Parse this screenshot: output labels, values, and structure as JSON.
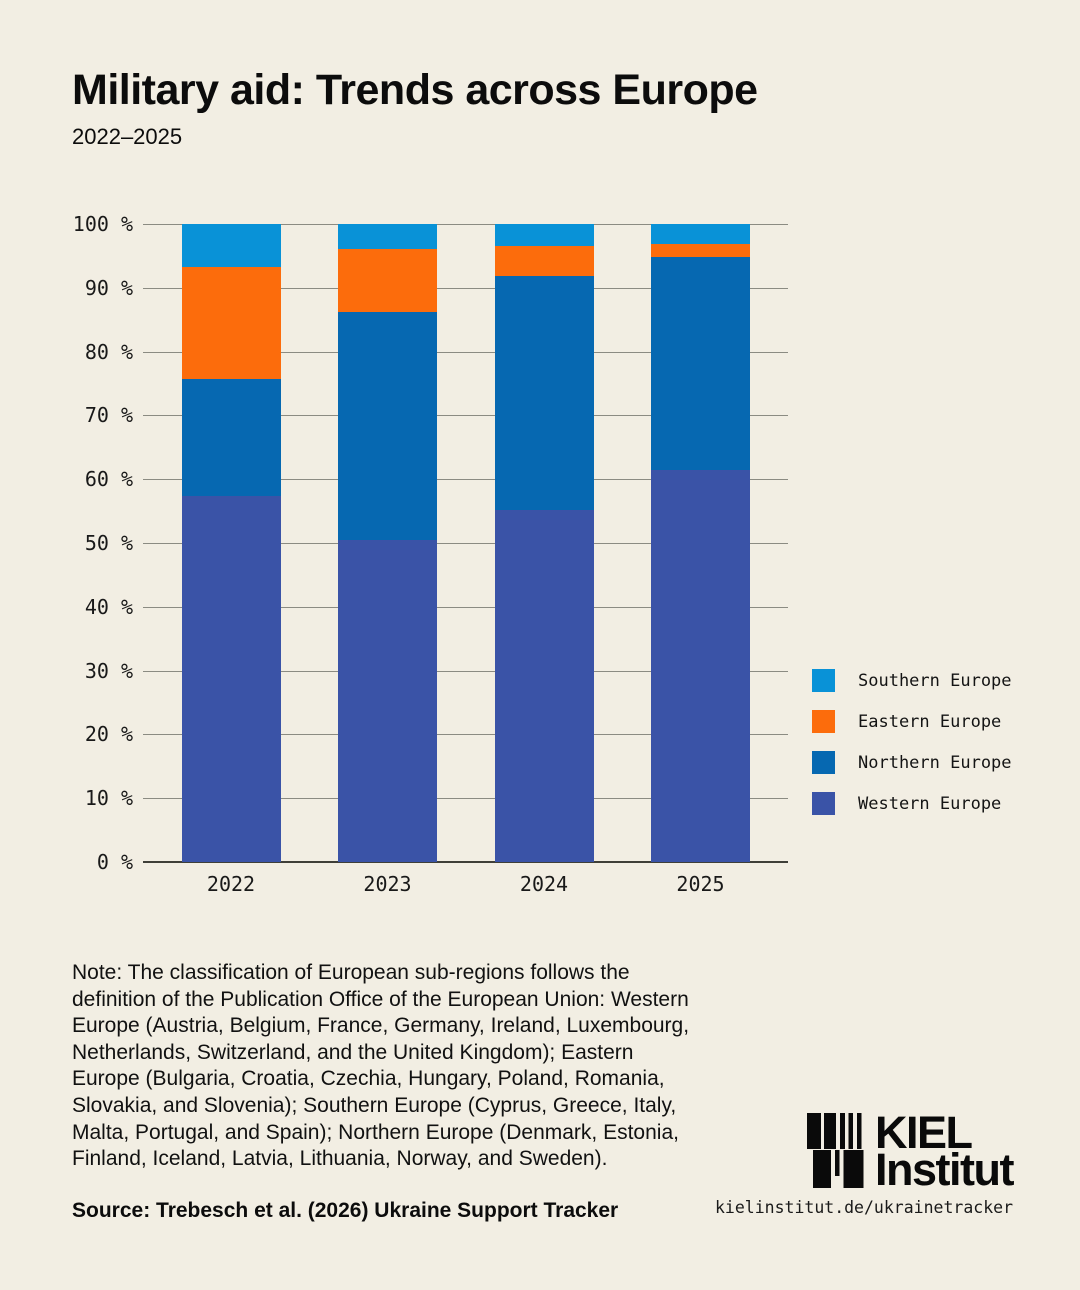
{
  "page": {
    "background": "#f2eee3",
    "text_color": "#0d0d0d"
  },
  "header": {
    "title": "Military aid: Trends across Europe",
    "subtitle": "2022–2025"
  },
  "chart_data": {
    "type": "bar",
    "stacked": true,
    "unit": "%",
    "title": "Military aid: Trends across Europe",
    "categories": [
      "2022",
      "2023",
      "2024",
      "2025"
    ],
    "series": [
      {
        "name": "Western Europe",
        "color": "#3a53a7",
        "values": [
          57.4,
          50.5,
          55.1,
          61.5
        ]
      },
      {
        "name": "Northern Europe",
        "color": "#0668b1",
        "values": [
          18.3,
          35.7,
          36.7,
          33.3
        ]
      },
      {
        "name": "Eastern Europe",
        "color": "#fc6c0c",
        "values": [
          17.6,
          9.9,
          4.7,
          2.1
        ]
      },
      {
        "name": "Southern Europe",
        "color": "#0992d7",
        "values": [
          6.7,
          3.9,
          3.5,
          3.1
        ]
      }
    ],
    "y_axis": {
      "min": 0,
      "max": 100,
      "step": 10,
      "tick_suffix": " %"
    },
    "legend_order": [
      "Southern Europe",
      "Eastern Europe",
      "Northern Europe",
      "Western Europe"
    ],
    "legend_position": "right",
    "grid": true,
    "gridline_color": "#8b8b82",
    "baseline_color": "#3f3f38"
  },
  "note": {
    "lines": [
      "Note: The classification of European sub-regions follows the",
      "definition of the Publication Office of the European Union: Western",
      "Europe (Austria, Belgium, France, Germany, Ireland, Luxembourg,",
      "Netherlands, Switzerland, and the United Kingdom); Eastern",
      "Europe (Bulgaria, Croatia, Czechia, Hungary, Poland, Romania,",
      "Slovakia, and Slovenia); Southern Europe (Cyprus, Greece, Italy,",
      "Malta, Portugal, and Spain); Northern Europe (Denmark, Estonia,",
      "Finland, Iceland, Latvia, Lithuania, Norway, and Sweden)."
    ]
  },
  "source": {
    "text": "Source: Trebesch et al. (2026) Ukraine Support Tracker"
  },
  "logo": {
    "line1": "KIEL",
    "line2": "Institut"
  },
  "footer": {
    "url": "kielinstitut.de/ukrainetracker"
  }
}
